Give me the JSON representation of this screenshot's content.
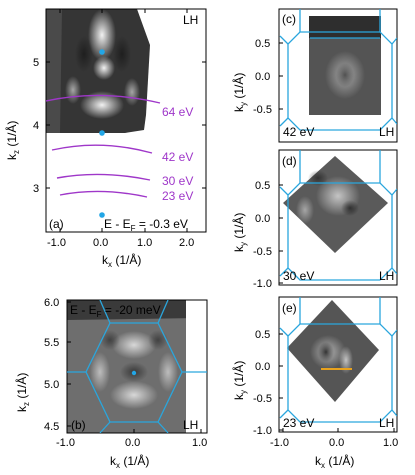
{
  "colors": {
    "bz_lines": "#2aa6dd",
    "kz_arcs": "#9f37c9",
    "gamma_points": "#22a6e6",
    "cut_line": "#e8a21e"
  },
  "panel_a": {
    "tag": "(a)",
    "polarization": "LH",
    "energy_label": "E - E$_F$ = -0.3 eV",
    "energy_text": "E - E",
    "energy_sub": "F",
    "energy_value": " = -0.3 eV",
    "photon_energies": [
      "64 eV",
      "42 eV",
      "30 eV",
      "23 eV"
    ],
    "x_axis": {
      "label_main": "k",
      "label_sub": "x",
      "label_unit": " (1/Å)",
      "ticks": [
        "-1.0",
        "0.0",
        "1.0",
        "2.0"
      ]
    },
    "y_axis": {
      "label_main": "k",
      "label_sub": "z",
      "label_unit": " (1/Å)",
      "ticks": [
        "3",
        "4",
        "5"
      ]
    }
  },
  "panel_b": {
    "tag": "(b)",
    "polarization": "LH",
    "energy_text": "E - E",
    "energy_sub": "F",
    "energy_value": " = -20 meV",
    "x_axis": {
      "label_main": "k",
      "label_sub": "x",
      "label_unit": " (1/Å)",
      "ticks": [
        "-1.0",
        "0.0",
        "1.0"
      ]
    },
    "y_axis": {
      "label_main": "k",
      "label_sub": "z",
      "label_unit": " (1/Å)",
      "ticks": [
        "4.5",
        "5.0",
        "5.5",
        "6.0"
      ]
    }
  },
  "panel_c": {
    "tag": "(c)",
    "polarization": "LH",
    "photon_energy": "42 eV",
    "y_axis": {
      "label_main": "k",
      "label_sub": "y",
      "label_unit": " (1/Å)",
      "ticks": [
        "-0.5",
        "0.0",
        "0.5"
      ]
    }
  },
  "panel_d": {
    "tag": "(d)",
    "polarization": "LH",
    "photon_energy": "30 eV",
    "y_axis": {
      "label_main": "k",
      "label_sub": "y",
      "label_unit": " (1/Å)",
      "ticks": [
        "-1.0",
        "-0.5",
        "0.0",
        "0.5"
      ]
    }
  },
  "panel_e": {
    "tag": "(e)",
    "polarization": "LH",
    "photon_energy": "23 eV",
    "y_axis": {
      "label_main": "k",
      "label_sub": "y",
      "label_unit": " (1/Å)",
      "ticks": [
        "-1.0",
        "-0.5",
        "0.0",
        "0.5"
      ]
    },
    "x_axis": {
      "label_main": "k",
      "label_sub": "x",
      "label_unit": " (1/Å)",
      "ticks": [
        "-1.0",
        "0.0",
        "1.0"
      ]
    }
  }
}
